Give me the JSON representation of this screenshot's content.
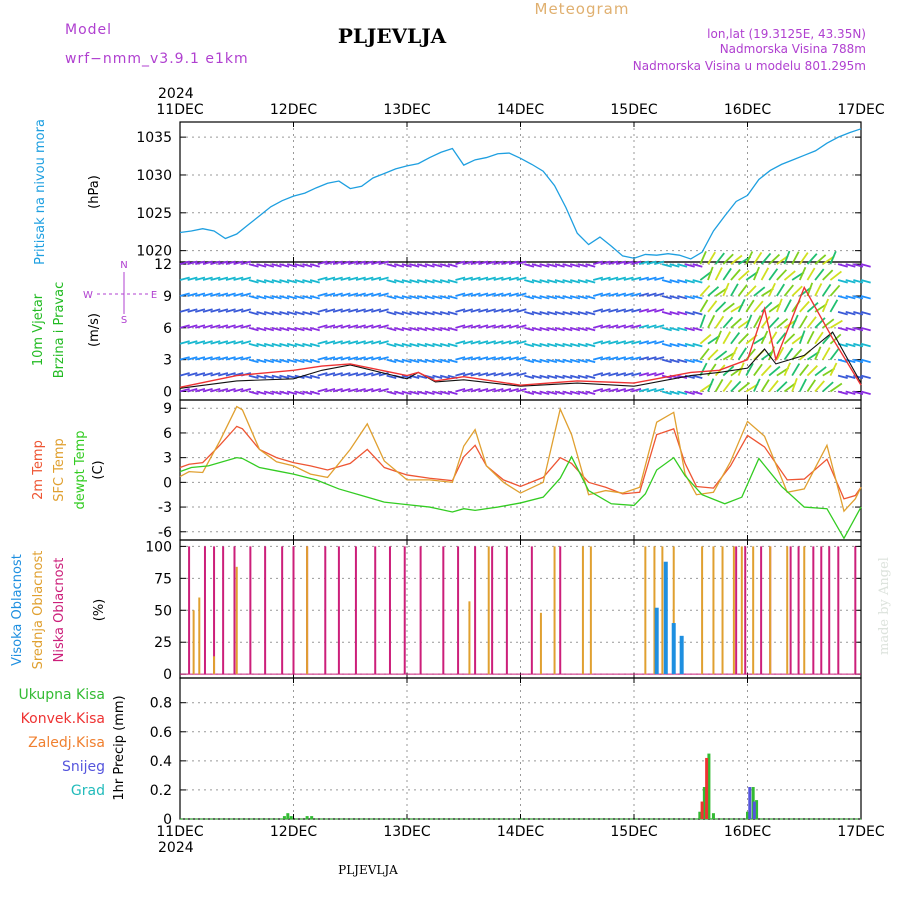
{
  "header": {
    "model_label": "Model",
    "model_name": "wrf−nmm_v3.9.1  e1km",
    "station": "PLJEVLJA",
    "product": "Meteogram",
    "coords": "lon,lat (19.3125E, 43.35N)",
    "elevation": "Nadmorska Visina 788m",
    "model_elevation": "Nadmorska Visina u modelu 801.295m",
    "footer_station": "PLJEVLJA",
    "watermark": "made by Angel"
  },
  "colors": {
    "pressure": "#1e9fe0",
    "temp2m": "#ee5533",
    "sfc": "#e0a030",
    "dewpt": "#33cc22",
    "low_cloud": "#cc1f7a",
    "mid_cloud": "#e0a030",
    "high_cloud": "#1e8fe0",
    "total_precip": "#33bb33",
    "conv_precip": "#ee3333",
    "snow": "#5555dd",
    "grad": "#22bbbb",
    "header_purple": "#b040d0",
    "meteogram_title": "#e0b070"
  },
  "chart_data": [
    {
      "type": "line",
      "panel": "pressure",
      "top_year": "2024",
      "top_dates": [
        "11DEC",
        "12DEC",
        "13DEC",
        "14DEC",
        "15DEC",
        "16DEC",
        "17DEC"
      ],
      "ylabel_title": "Pritisak na nivou mora",
      "ylabel_unit": "(hPa)",
      "yticks": [
        1020,
        1025,
        1030,
        1035
      ],
      "ylim": [
        1018.5,
        1037.0
      ],
      "xlim": [
        0,
        6
      ],
      "grid": true,
      "series": [
        {
          "color": "#1e9fe0",
          "x": [
            0,
            0.1,
            0.2,
            0.3,
            0.4,
            0.5,
            0.6,
            0.7,
            0.8,
            0.9,
            1.0,
            1.1,
            1.2,
            1.3,
            1.4,
            1.5,
            1.6,
            1.7,
            1.8,
            1.9,
            2.0,
            2.1,
            2.2,
            2.3,
            2.4,
            2.5,
            2.6,
            2.7,
            2.8,
            2.9,
            3.0,
            3.1,
            3.2,
            3.3,
            3.4,
            3.5,
            3.6,
            3.7,
            3.8,
            3.9,
            4.0,
            4.1,
            4.2,
            4.3,
            4.4,
            4.5,
            4.6,
            4.7,
            4.8,
            4.9,
            5.0,
            5.1,
            5.2,
            5.3,
            5.4,
            5.5,
            5.6,
            5.7,
            5.8,
            5.9,
            6.0
          ],
          "y": [
            1022.4,
            1022.6,
            1022.9,
            1022.6,
            1021.6,
            1022.2,
            1023.4,
            1024.6,
            1025.8,
            1026.6,
            1027.2,
            1027.6,
            1028.3,
            1028.9,
            1029.2,
            1028.2,
            1028.5,
            1029.6,
            1030.2,
            1030.8,
            1031.2,
            1031.5,
            1032.3,
            1033.0,
            1033.5,
            1031.3,
            1032.0,
            1032.3,
            1032.8,
            1032.9,
            1032.2,
            1031.4,
            1030.5,
            1028.6,
            1025.7,
            1022.3,
            1020.8,
            1021.8,
            1020.6,
            1019.3,
            1019.0,
            1019.5,
            1019.4,
            1019.6,
            1019.4,
            1018.9,
            1019.8,
            1022.6,
            1024.6,
            1026.5,
            1027.3,
            1029.4,
            1030.6,
            1031.4,
            1032.0,
            1032.6,
            1033.2,
            1034.2,
            1035.0,
            1035.6,
            1036.1
          ]
        }
      ]
    },
    {
      "type": "line",
      "panel": "wind",
      "ylabel_title": [
        "10m Vjetar",
        "Brzina i Pravac"
      ],
      "ylabel_unit": "(m/s)",
      "compass": [
        "N",
        "S",
        "W",
        "E"
      ],
      "yticks": [
        0,
        3,
        6,
        9,
        12
      ],
      "ylim": [
        -0.8,
        12.2
      ],
      "xlim": [
        0,
        6
      ],
      "grid": true,
      "series": [
        {
          "name": "speed",
          "color": "#111111",
          "x": [
            0,
            0.5,
            1,
            1.25,
            1.5,
            2,
            2.1,
            2.25,
            2.5,
            3,
            3.5,
            4,
            4.5,
            4.75,
            5,
            5.15,
            5.25,
            5.5,
            5.75,
            6
          ],
          "y": [
            0.3,
            1.0,
            1.2,
            2.0,
            2.5,
            1.2,
            1.8,
            0.9,
            1.1,
            0.5,
            0.8,
            0.5,
            1.5,
            1.8,
            2.2,
            4.0,
            2.6,
            3.4,
            5.6,
            0.8
          ]
        },
        {
          "name": "gust",
          "color": "#ee3333",
          "x": [
            0,
            0.5,
            1,
            1.25,
            1.5,
            2,
            2.1,
            2.25,
            2.5,
            3,
            3.5,
            4,
            4.5,
            4.75,
            5,
            5.15,
            5.25,
            5.5,
            5.75,
            6
          ],
          "y": [
            0.4,
            1.5,
            2.0,
            2.4,
            2.6,
            1.5,
            1.8,
            1.0,
            1.4,
            0.6,
            1.0,
            0.8,
            1.8,
            2.0,
            3.0,
            7.8,
            3.0,
            9.8,
            5.0,
            0.6
          ]
        }
      ]
    },
    {
      "type": "line",
      "panel": "temperature",
      "ylabel_title": [
        "2m Temp",
        "SFC Temp",
        "dewpt Temp"
      ],
      "ylabel_unit": "(C)",
      "yticks": [
        -6,
        -3,
        0,
        3,
        6,
        9
      ],
      "ylim": [
        -7.0,
        10.0
      ],
      "xlim": [
        0,
        6
      ],
      "grid": true,
      "series": [
        {
          "name": "2m Temp",
          "color": "#ee5533",
          "x": [
            0,
            0.08,
            0.2,
            0.35,
            0.5,
            0.55,
            0.7,
            0.85,
            1,
            1.15,
            1.3,
            1.5,
            1.65,
            1.8,
            2,
            2.2,
            2.4,
            2.5,
            2.6,
            2.7,
            2.85,
            3,
            3.2,
            3.35,
            3.45,
            3.6,
            3.75,
            3.9,
            4.05,
            4.2,
            4.35,
            4.45,
            4.55,
            4.7,
            4.85,
            5,
            5.15,
            5.35,
            5.5,
            5.7,
            5.85,
            5.95,
            6
          ],
          "y": [
            1.8,
            2.2,
            2.4,
            4.5,
            6.8,
            6.5,
            4.0,
            3.0,
            2.4,
            2.0,
            1.5,
            2.3,
            4.0,
            1.8,
            0.9,
            0.5,
            0.2,
            3.1,
            4.5,
            2.0,
            0.3,
            -0.5,
            0.6,
            3.0,
            2.3,
            0.0,
            -0.6,
            -1.4,
            -1.2,
            5.8,
            6.5,
            2.3,
            -0.5,
            -0.7,
            2.0,
            5.7,
            4.3,
            0.3,
            0.4,
            2.8,
            -2.0,
            -1.6,
            -0.6
          ]
        },
        {
          "name": "SFC Temp",
          "color": "#e0a030",
          "x": [
            0,
            0.08,
            0.2,
            0.35,
            0.5,
            0.55,
            0.7,
            0.85,
            1,
            1.15,
            1.3,
            1.5,
            1.65,
            1.8,
            2,
            2.2,
            2.4,
            2.5,
            2.6,
            2.7,
            2.85,
            3,
            3.2,
            3.35,
            3.45,
            3.6,
            3.75,
            3.9,
            4.05,
            4.2,
            4.35,
            4.45,
            4.55,
            4.7,
            4.85,
            5,
            5.15,
            5.35,
            5.5,
            5.7,
            5.85,
            5.95,
            6
          ],
          "y": [
            0.7,
            1.3,
            1.2,
            5.0,
            9.2,
            8.8,
            4.0,
            2.5,
            2.0,
            1.0,
            0.6,
            4.0,
            7.1,
            2.6,
            0.3,
            0.3,
            0.0,
            4.4,
            6.4,
            2.0,
            0.0,
            -1.3,
            0.0,
            8.9,
            5.8,
            -1.5,
            -1.0,
            -1.3,
            -0.6,
            7.3,
            8.5,
            1.0,
            -1.5,
            -1.2,
            2.5,
            7.4,
            5.6,
            -1.2,
            -0.8,
            4.5,
            -3.5,
            -2.0,
            -0.6
          ]
        },
        {
          "name": "dewpt Temp",
          "color": "#33cc22",
          "x": [
            0,
            0.1,
            0.25,
            0.5,
            0.55,
            0.7,
            0.85,
            1,
            1.2,
            1.4,
            1.6,
            1.8,
            2,
            2.2,
            2.4,
            2.5,
            2.6,
            2.8,
            3,
            3.2,
            3.35,
            3.45,
            3.6,
            3.8,
            4,
            4.1,
            4.2,
            4.35,
            4.45,
            4.6,
            4.8,
            4.95,
            5.1,
            5.3,
            5.5,
            5.7,
            5.85,
            6
          ],
          "y": [
            1.3,
            1.8,
            2.0,
            3.0,
            2.9,
            1.8,
            1.4,
            1.0,
            0.3,
            -0.8,
            -1.6,
            -2.4,
            -2.7,
            -3.0,
            -3.6,
            -3.2,
            -3.4,
            -3.0,
            -2.5,
            -1.8,
            0.5,
            3.1,
            -1.0,
            -2.6,
            -2.8,
            -1.4,
            1.5,
            3.0,
            0.8,
            -1.5,
            -2.6,
            -1.8,
            2.9,
            -0.5,
            -3.0,
            -3.2,
            -6.8,
            -3.0
          ]
        }
      ]
    },
    {
      "type": "bar",
      "panel": "clouds",
      "ylabel_title": [
        "Visoka Oblacnost",
        "Srednja Oblacnost",
        "Niska Oblacnost"
      ],
      "ylabel_unit": "(%)",
      "yticks": [
        0,
        25,
        50,
        75,
        100
      ],
      "ylim": [
        -3,
        105
      ],
      "xlim": [
        0,
        6
      ],
      "grid": true,
      "series": [
        {
          "name": "Niska Oblacnost",
          "color": "#cc1f7a",
          "x": [
            0.08,
            0.22,
            0.3,
            0.38,
            0.48,
            0.62,
            0.75,
            0.9,
            1.0,
            1.12,
            1.28,
            1.4,
            1.55,
            1.72,
            1.85,
            1.98,
            2.12,
            2.32,
            2.45,
            2.6,
            2.75,
            2.88,
            3.1,
            3.35,
            4.9,
            4.98,
            5.12,
            5.2,
            5.38,
            5.45,
            5.58,
            5.65,
            5.72,
            5.8,
            5.95
          ],
          "y": [
            100,
            100,
            100,
            100,
            100,
            100,
            100,
            100,
            100,
            100,
            100,
            100,
            100,
            100,
            100,
            100,
            100,
            100,
            100,
            100,
            100,
            100,
            100,
            100,
            100,
            100,
            100,
            100,
            100,
            100,
            100,
            100,
            100,
            100,
            100
          ]
        },
        {
          "name": "Srednja Oblacnost",
          "color": "#e0a030",
          "x": [
            0.12,
            0.17,
            0.3,
            0.5,
            1.12,
            2.55,
            2.72,
            3.18,
            3.3,
            3.55,
            3.62,
            4.1,
            4.18,
            4.25,
            4.35,
            4.6,
            4.7,
            4.78,
            4.88,
            4.95,
            5.05,
            5.2,
            5.35,
            5.5
          ],
          "y": [
            50,
            60,
            14,
            84,
            100,
            57,
            100,
            48,
            100,
            100,
            100,
            100,
            100,
            100,
            100,
            100,
            100,
            100,
            100,
            100,
            100,
            100,
            100,
            100
          ]
        },
        {
          "name": "Visoka Oblacnost",
          "color": "#1e8fe0",
          "x": [
            4.2,
            4.28,
            4.35,
            4.42
          ],
          "y": [
            52,
            88,
            40,
            30
          ]
        }
      ]
    },
    {
      "type": "bar",
      "panel": "precip",
      "ylabel_title": "1hr Precip (mm)",
      "legend": [
        "Ukupna Kisa",
        "Konvek.Kisa",
        "Zaledj.Kisa",
        "Snijeg",
        "Grad"
      ],
      "yticks": [
        0,
        0.2,
        0.4,
        0.6,
        0.8
      ],
      "ylim": [
        0,
        0.97
      ],
      "xlim": [
        0,
        6
      ],
      "grid": true,
      "bottom_dates": [
        "11DEC",
        "12DEC",
        "13DEC",
        "14DEC",
        "15DEC",
        "16DEC",
        "17DEC"
      ],
      "bottom_year": "2024",
      "series": [
        {
          "name": "Ukupna Kisa",
          "color": "#33bb33",
          "x": [
            0.92,
            0.95,
            0.98,
            1.12,
            1.16,
            4.58,
            4.62,
            4.66,
            4.7,
            5.0,
            5.05,
            5.08
          ],
          "y": [
            0.02,
            0.04,
            0.02,
            0.02,
            0.02,
            0.05,
            0.22,
            0.45,
            0.04,
            0.05,
            0.22,
            0.13
          ]
        },
        {
          "name": "Konvek.Kisa",
          "color": "#ee3333",
          "x": [
            4.6,
            4.64
          ],
          "y": [
            0.12,
            0.42
          ]
        },
        {
          "name": "Snijeg",
          "color": "#5555dd",
          "x": [
            5.02,
            5.06
          ],
          "y": [
            0.22,
            0.12
          ]
        }
      ]
    }
  ]
}
